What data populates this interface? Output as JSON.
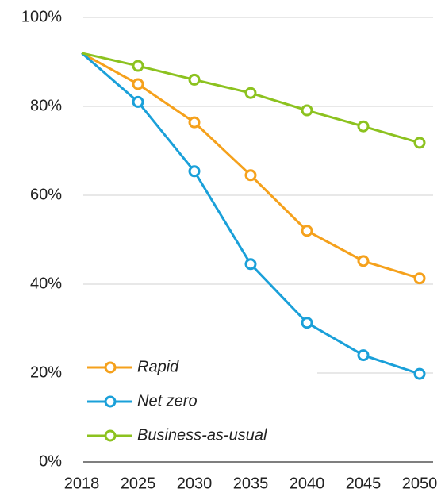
{
  "chart_data": {
    "type": "line",
    "categories": [
      "2018",
      "2025",
      "2030",
      "2035",
      "2040",
      "2045",
      "2050"
    ],
    "series": [
      {
        "name": "Rapid",
        "color": "#f5a11c",
        "values": [
          92,
          85,
          76.4,
          64.5,
          52,
          45.2,
          41.3
        ]
      },
      {
        "name": "Net zero",
        "color": "#1aa0d9",
        "values": [
          92,
          81,
          65.4,
          44.5,
          31.3,
          24,
          19.8
        ]
      },
      {
        "name": "Business-as-usual",
        "color": "#8cc21f",
        "values": [
          92,
          89.1,
          86,
          83,
          79.1,
          75.5,
          71.8
        ]
      }
    ],
    "ylim": [
      0,
      100
    ],
    "yticks": [
      {
        "value": 0,
        "label": "0%"
      },
      {
        "value": 20,
        "label": "20%"
      },
      {
        "value": 40,
        "label": "40%"
      },
      {
        "value": 60,
        "label": "60%"
      },
      {
        "value": 80,
        "label": "80%"
      },
      {
        "value": 100,
        "label": "100%"
      }
    ],
    "grid": true,
    "legend": "lower left"
  }
}
